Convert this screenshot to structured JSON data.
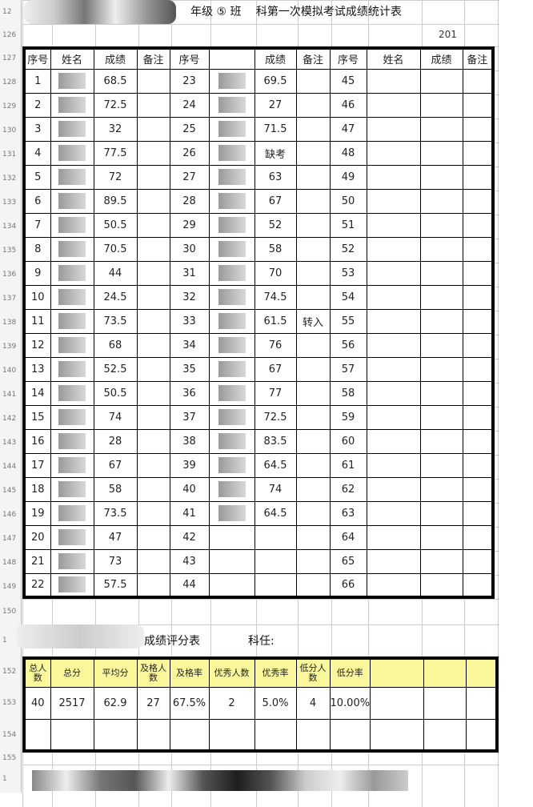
{
  "title": "年级 ⑤ 班　 科第一次模拟考试成绩统计表",
  "date_fragment": "201",
  "row_numbers": [
    "12",
    "126",
    "127",
    "128",
    "129",
    "130",
    "131",
    "132",
    "133",
    "134",
    "135",
    "136",
    "137",
    "138",
    "139",
    "140",
    "141",
    "142",
    "143",
    "144",
    "145",
    "146",
    "147",
    "148",
    "149",
    "150",
    "1",
    "152",
    "153",
    "154",
    "155",
    "1"
  ],
  "main_headers": [
    "序号",
    "姓名",
    "成绩",
    "备注",
    "序号",
    "",
    "成绩",
    "备注",
    "序号",
    "姓名",
    "成绩",
    "备注"
  ],
  "rows": [
    [
      "1",
      "68.5",
      "",
      "23",
      "69.5",
      "",
      "45"
    ],
    [
      "2",
      "72.5",
      "",
      "24",
      "27",
      "",
      "46"
    ],
    [
      "3",
      "32",
      "",
      "25",
      "71.5",
      "",
      "47"
    ],
    [
      "4",
      "77.5",
      "",
      "26",
      "缺考",
      "",
      "48"
    ],
    [
      "5",
      "72",
      "",
      "27",
      "63",
      "",
      "49"
    ],
    [
      "6",
      "89.5",
      "",
      "28",
      "67",
      "",
      "50"
    ],
    [
      "7",
      "50.5",
      "",
      "29",
      "52",
      "",
      "51"
    ],
    [
      "8",
      "70.5",
      "",
      "30",
      "58",
      "",
      "52"
    ],
    [
      "9",
      "44",
      "",
      "31",
      "70",
      "",
      "53"
    ],
    [
      "10",
      "24.5",
      "",
      "32",
      "74.5",
      "",
      "54"
    ],
    [
      "11",
      "73.5",
      "",
      "33",
      "61.5",
      "转入",
      "55"
    ],
    [
      "12",
      "68",
      "",
      "34",
      "76",
      "",
      "56"
    ],
    [
      "13",
      "52.5",
      "",
      "35",
      "67",
      "",
      "57"
    ],
    [
      "14",
      "50.5",
      "",
      "36",
      "77",
      "",
      "58"
    ],
    [
      "15",
      "74",
      "",
      "37",
      "72.5",
      "",
      "59"
    ],
    [
      "16",
      "28",
      "",
      "38",
      "83.5",
      "",
      "60"
    ],
    [
      "17",
      "67",
      "",
      "39",
      "64.5",
      "",
      "61"
    ],
    [
      "18",
      "58",
      "",
      "40",
      "74",
      "",
      "62"
    ],
    [
      "19",
      "73.5",
      "",
      "41",
      "64.5",
      "",
      "63"
    ],
    [
      "20",
      "47",
      "",
      "42",
      "",
      "",
      "64"
    ],
    [
      "21",
      "73",
      "",
      "43",
      "",
      "",
      "65"
    ],
    [
      "22",
      "57.5",
      "",
      "44",
      "",
      "",
      "66"
    ]
  ],
  "score_title": "成绩评分表",
  "teacher_label": "科任:",
  "score_headers": [
    "总人数",
    "总分",
    "平均分",
    "及格人数",
    "及格率",
    "优秀人数",
    "优秀率",
    "低分人数",
    "低分率",
    "",
    "",
    ""
  ],
  "score_values": [
    "40",
    "2517",
    "62.9",
    "27",
    "67.5%",
    "2",
    "5.0%",
    "4",
    "10.00%",
    "",
    "",
    ""
  ],
  "colors": {
    "header_yellow": "#fbf89c",
    "border": "#000000"
  }
}
